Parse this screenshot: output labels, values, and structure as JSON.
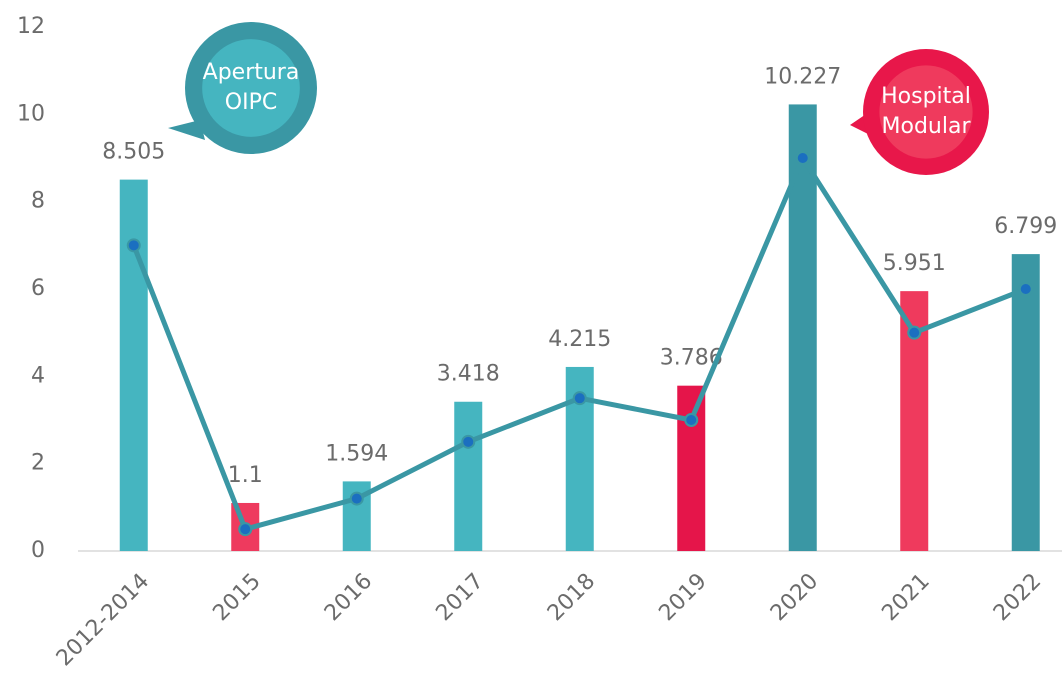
{
  "chart_data": {
    "type": "bar-line",
    "categories": [
      "2012-2014",
      "2015",
      "2016",
      "2017",
      "2018",
      "2019",
      "2020",
      "2021",
      "2022"
    ],
    "bars": {
      "values": [
        8.505,
        1.1,
        1.594,
        3.418,
        4.215,
        3.786,
        10.227,
        5.951,
        6.799
      ],
      "colors": [
        "#45b5c0",
        "#ee3a5e",
        "#45b5c0",
        "#45b5c0",
        "#45b5c0",
        "#e5154a",
        "#3a97a4",
        "#ef3a5d",
        "#3a97a4"
      ]
    },
    "line": {
      "values": [
        7,
        0.5,
        1.2,
        2.5,
        3.5,
        3,
        9,
        5,
        6
      ],
      "color": "#3a97a4",
      "marker_color": "#1b6fc0"
    },
    "ylim": [
      0,
      12
    ],
    "yticks": [
      0,
      2,
      4,
      6,
      8,
      10,
      12
    ],
    "grid": false,
    "annotations": [
      {
        "lines": [
          "Apertura",
          "OIPC"
        ],
        "color": "#3a97a4",
        "inner_color": "#45b5c0"
      },
      {
        "lines": [
          "Hospital",
          "Modular"
        ],
        "color": "#e8174a",
        "inner_color": "#ef3a5d"
      }
    ]
  }
}
